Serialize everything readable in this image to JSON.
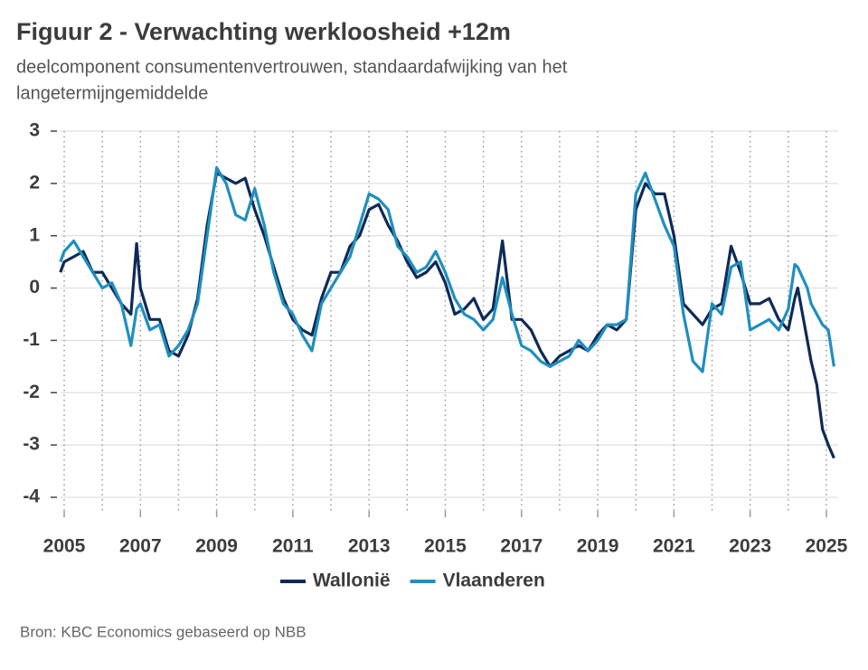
{
  "chart_data": {
    "type": "line",
    "title": "Figuur 2 - Verwachting werkloosheid +12m",
    "subtitle": [
      "deelcomponent consumentenvertrouwen, standaardafwijking van het",
      "langetermijngemiddelde"
    ],
    "source": "Bron: KBC Economics gebaseerd op NBB",
    "x": [
      2004.9,
      2005.0,
      2005.25,
      2005.5,
      2005.75,
      2006.0,
      2006.25,
      2006.5,
      2006.75,
      2006.9,
      2007.0,
      2007.25,
      2007.5,
      2007.75,
      2008.0,
      2008.25,
      2008.5,
      2008.75,
      2009.0,
      2009.25,
      2009.5,
      2009.75,
      2010.0,
      2010.25,
      2010.5,
      2010.75,
      2011.0,
      2011.25,
      2011.5,
      2011.75,
      2012.0,
      2012.25,
      2012.5,
      2012.75,
      2013.0,
      2013.25,
      2013.5,
      2013.75,
      2014.0,
      2014.25,
      2014.5,
      2014.75,
      2015.0,
      2015.25,
      2015.5,
      2015.75,
      2016.0,
      2016.25,
      2016.5,
      2016.75,
      2017.0,
      2017.25,
      2017.5,
      2017.75,
      2018.0,
      2018.25,
      2018.5,
      2018.75,
      2019.0,
      2019.25,
      2019.5,
      2019.75,
      2020.0,
      2020.25,
      2020.5,
      2020.75,
      2021.0,
      2021.25,
      2021.5,
      2021.75,
      2022.0,
      2022.25,
      2022.5,
      2022.75,
      2023.0,
      2023.25,
      2023.5,
      2023.75,
      2024.0,
      2024.17,
      2024.25,
      2024.5,
      2024.6,
      2024.75,
      2024.9,
      2025.05,
      2025.2
    ],
    "series": [
      {
        "name": "Wallonië",
        "color": "#0e2a57",
        "values": [
          0.3,
          0.5,
          0.6,
          0.7,
          0.3,
          0.3,
          0.0,
          -0.3,
          -0.5,
          0.85,
          0.0,
          -0.6,
          -0.6,
          -1.2,
          -1.3,
          -0.9,
          -0.2,
          1.2,
          2.2,
          2.1,
          2.0,
          2.1,
          1.5,
          1.0,
          0.4,
          -0.2,
          -0.6,
          -0.8,
          -0.9,
          -0.2,
          0.3,
          0.3,
          0.8,
          1.0,
          1.5,
          1.6,
          1.2,
          0.9,
          0.5,
          0.2,
          0.3,
          0.5,
          0.1,
          -0.5,
          -0.4,
          -0.2,
          -0.6,
          -0.4,
          0.9,
          -0.6,
          -0.6,
          -0.8,
          -1.2,
          -1.5,
          -1.3,
          -1.2,
          -1.1,
          -1.2,
          -0.9,
          -0.7,
          -0.8,
          -0.6,
          1.5,
          2.0,
          1.8,
          1.8,
          1.0,
          -0.3,
          -0.5,
          -0.7,
          -0.4,
          -0.3,
          0.8,
          0.3,
          -0.3,
          -0.3,
          -0.2,
          -0.6,
          -0.8,
          -0.2,
          0.0,
          -1.0,
          -1.4,
          -1.85,
          -2.7,
          -3.0,
          -3.25
        ]
      },
      {
        "name": "Vlaanderen",
        "color": "#1f8fbf",
        "values": [
          0.5,
          0.7,
          0.9,
          0.6,
          0.3,
          0.0,
          0.1,
          -0.3,
          -1.1,
          -0.4,
          -0.3,
          -0.8,
          -0.7,
          -1.3,
          -1.1,
          -0.8,
          -0.3,
          1.0,
          2.3,
          2.0,
          1.4,
          1.3,
          1.9,
          1.2,
          0.3,
          -0.3,
          -0.5,
          -0.9,
          -1.2,
          -0.3,
          0.0,
          0.3,
          0.6,
          1.2,
          1.8,
          1.7,
          1.5,
          0.8,
          0.6,
          0.3,
          0.4,
          0.7,
          0.3,
          -0.2,
          -0.5,
          -0.6,
          -0.8,
          -0.6,
          0.2,
          -0.5,
          -1.1,
          -1.2,
          -1.4,
          -1.5,
          -1.4,
          -1.3,
          -1.0,
          -1.2,
          -1.0,
          -0.7,
          -0.7,
          -0.6,
          1.8,
          2.2,
          1.7,
          1.2,
          0.8,
          -0.5,
          -1.4,
          -1.6,
          -0.3,
          -0.5,
          0.4,
          0.5,
          -0.8,
          -0.7,
          -0.6,
          -0.8,
          -0.4,
          0.45,
          0.4,
          0.0,
          -0.3,
          -0.5,
          -0.7,
          -0.8,
          -1.5
        ]
      }
    ],
    "xlim": [
      2004.9,
      2025.3
    ],
    "xticks": [
      2005,
      2007,
      2009,
      2011,
      2013,
      2015,
      2017,
      2019,
      2021,
      2023,
      2025
    ],
    "ylim": [
      -4,
      3
    ],
    "yticks": [
      -4,
      -3,
      -2,
      -1,
      0,
      1,
      2,
      3
    ],
    "grid": true
  }
}
